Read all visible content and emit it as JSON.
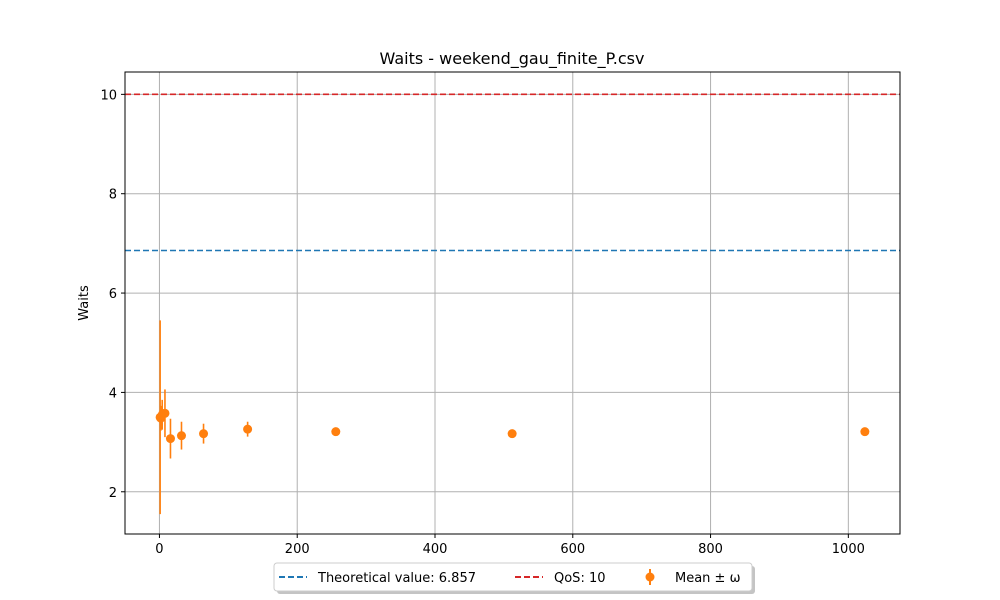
{
  "chart_data": {
    "type": "scatter",
    "title": "Waits - weekend_gau_finite_P.csv",
    "xlabel": "",
    "ylabel": "Waits",
    "xlim": [
      -50,
      1075
    ],
    "ylim": [
      1.15,
      10.45
    ],
    "x_ticks": [
      0,
      200,
      400,
      600,
      800,
      1000
    ],
    "y_ticks": [
      2,
      4,
      6,
      8,
      10
    ],
    "grid": true,
    "legend_position": "bottom-center",
    "reference_lines": [
      {
        "label": "Theoretical value: 6.857",
        "value": 6.857,
        "color": "#1f77b4",
        "style": "dashed"
      },
      {
        "label": "QoS: 10",
        "value": 10,
        "color": "#d62728",
        "style": "dashed"
      }
    ],
    "series": [
      {
        "name": "Mean ± ω",
        "color": "#ff7f0e",
        "points": [
          {
            "x": 1,
            "y": 3.5,
            "err": 1.95
          },
          {
            "x": 2,
            "y": 3.48,
            "err": 0.25
          },
          {
            "x": 4,
            "y": 3.55,
            "err": 0.3
          },
          {
            "x": 8,
            "y": 3.58,
            "err": 0.48
          },
          {
            "x": 16,
            "y": 3.07,
            "err": 0.4
          },
          {
            "x": 32,
            "y": 3.13,
            "err": 0.28
          },
          {
            "x": 64,
            "y": 3.17,
            "err": 0.2
          },
          {
            "x": 128,
            "y": 3.26,
            "err": 0.15
          },
          {
            "x": 256,
            "y": 3.21,
            "err": 0.07
          },
          {
            "x": 512,
            "y": 3.17,
            "err": 0.03
          },
          {
            "x": 1024,
            "y": 3.21,
            "err": 0.03
          }
        ]
      }
    ]
  }
}
